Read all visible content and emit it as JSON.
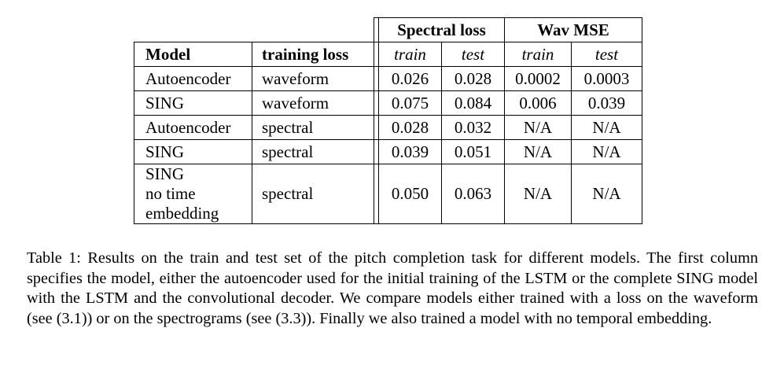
{
  "table": {
    "group_headers": {
      "spectral_loss": "Spectral loss",
      "wav_mse": "Wav MSE"
    },
    "col_headers": {
      "model": "Model",
      "training_loss": "training loss",
      "spec_train": "train",
      "spec_test": "test",
      "wav_train": "train",
      "wav_test": "test"
    },
    "rows": [
      {
        "model": "Autoencoder",
        "loss": "waveform",
        "spec_train": "0.026",
        "spec_test": "0.028",
        "wav_train": "0.0002",
        "wav_test": "0.0003"
      },
      {
        "model": "SING",
        "loss": "waveform",
        "spec_train": "0.075",
        "spec_test": "0.084",
        "wav_train": "0.006",
        "wav_test": "0.039"
      },
      {
        "model": "Autoencoder",
        "loss": "spectral",
        "spec_train": "0.028",
        "spec_test": "0.032",
        "wav_train": "N/A",
        "wav_test": "N/A"
      },
      {
        "model": "SING",
        "loss": "spectral",
        "spec_train": "0.039",
        "spec_test": "0.051",
        "wav_train": "N/A",
        "wav_test": "N/A"
      },
      {
        "model_lines": [
          "SING",
          "no time",
          "embedding"
        ],
        "loss": "spectral",
        "spec_train": "0.050",
        "spec_test": "0.063",
        "wav_train": "N/A",
        "wav_test": "N/A"
      }
    ]
  },
  "caption": "Table 1: Results on the train and test set of the pitch completion task for different models. The first column specifies the model, either the autoencoder used for the initial training of the LSTM or the complete SING model with the LSTM and the convolutional decoder. We compare models either trained with a loss on the waveform (see (3.1)) or on the spectrograms (see (3.3)). Finally we also trained a model with no temporal embedding."
}
